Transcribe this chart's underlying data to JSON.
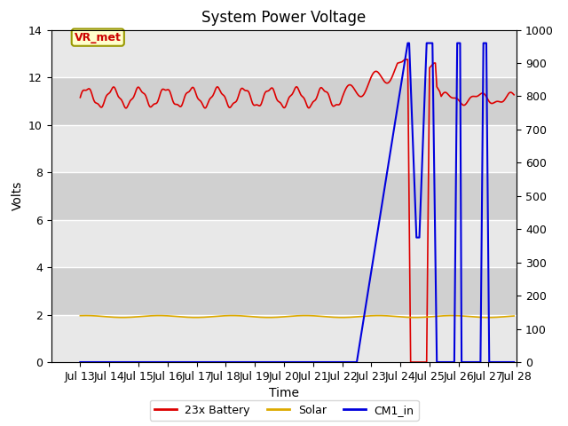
{
  "title": "System Power Voltage",
  "xlabel": "Time",
  "ylabel": "Volts",
  "xlim": [
    12,
    28
  ],
  "ylim_left": [
    0,
    14
  ],
  "ylim_right": [
    0,
    1000
  ],
  "background_color": "#ffffff",
  "plot_bg_light": "#e8e8e8",
  "plot_bg_dark": "#d0d0d0",
  "grid_color": "#ffffff",
  "annotation_label": "VR_met",
  "annotation_color": "#cc0000",
  "annotation_bg": "#ffffcc",
  "series_colors": {
    "battery": "#dd0000",
    "solar": "#ddaa00",
    "cm1": "#0000dd"
  },
  "legend_labels": [
    "23x Battery",
    "Solar",
    "CM1_in"
  ],
  "title_fontsize": 12,
  "axis_fontsize": 10,
  "tick_fontsize": 9,
  "band_edges": [
    0,
    2,
    4,
    6,
    8,
    10,
    12,
    14
  ]
}
